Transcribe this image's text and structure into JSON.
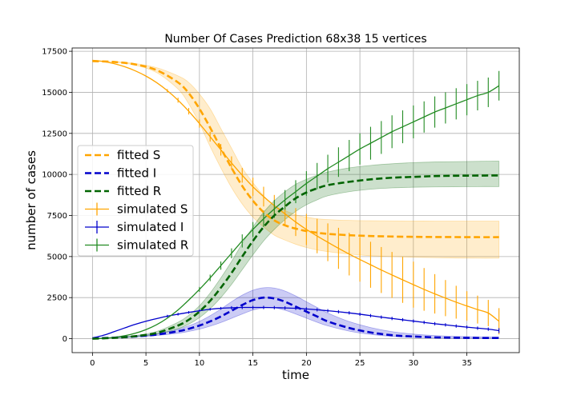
{
  "chart_data": {
    "type": "line",
    "title": "Number Of Cases Prediction 68x38 15 vertices",
    "xlabel": "time",
    "ylabel": "number of cases",
    "xlim": [
      -1.9,
      39.9
    ],
    "ylim": [
      -850,
      17700
    ],
    "xticks": [
      0,
      5,
      10,
      15,
      20,
      25,
      30,
      35
    ],
    "yticks": [
      0,
      2500,
      5000,
      7500,
      10000,
      12500,
      15000,
      17500
    ],
    "grid": true,
    "legend_position": "center-left",
    "fitted": {
      "x": [
        0,
        2,
        4,
        6,
        8,
        9,
        10,
        11,
        12,
        13,
        14,
        15,
        16,
        17,
        18,
        19,
        20,
        21,
        22,
        24,
        26,
        28,
        30,
        32,
        34,
        36,
        38
      ],
      "series": [
        {
          "name": "fitted S",
          "color": "#ffa500",
          "values": [
            16900,
            16850,
            16700,
            16350,
            15600,
            14950,
            14000,
            12850,
            11600,
            10400,
            9300,
            8400,
            7700,
            7200,
            6900,
            6700,
            6550,
            6450,
            6380,
            6300,
            6250,
            6220,
            6200,
            6190,
            6185,
            6180,
            6180
          ],
          "band_lower": [
            16900,
            16850,
            16650,
            16200,
            15200,
            14300,
            13100,
            11700,
            10400,
            9200,
            8200,
            7400,
            6800,
            6300,
            6000,
            5750,
            5550,
            5400,
            5300,
            5150,
            5050,
            5000,
            4960,
            4930,
            4910,
            4900,
            4900
          ],
          "band_upper": [
            16900,
            16870,
            16750,
            16500,
            16000,
            15600,
            14900,
            14000,
            12800,
            11600,
            10400,
            9500,
            8700,
            8100,
            7800,
            7550,
            7400,
            7300,
            7250,
            7200,
            7180,
            7170,
            7165,
            7160,
            7160,
            7160,
            7160
          ]
        },
        {
          "name": "fitted I",
          "color": "#0000cc",
          "values": [
            20,
            60,
            130,
            250,
            450,
            600,
            800,
            1050,
            1350,
            1700,
            2050,
            2350,
            2500,
            2450,
            2250,
            1950,
            1650,
            1350,
            1050,
            650,
            380,
            210,
            130,
            80,
            55,
            45,
            40
          ],
          "band_lower": [
            20,
            50,
            100,
            190,
            330,
            440,
            580,
            760,
            980,
            1240,
            1500,
            1740,
            1870,
            1880,
            1730,
            1500,
            1250,
            1000,
            780,
            460,
            260,
            140,
            80,
            50,
            30,
            25,
            20
          ],
          "band_upper": [
            20,
            70,
            160,
            310,
            580,
            780,
            1050,
            1400,
            1800,
            2250,
            2650,
            2950,
            3100,
            3080,
            2900,
            2600,
            2250,
            1900,
            1560,
            1040,
            680,
            430,
            280,
            190,
            140,
            110,
            100
          ]
        },
        {
          "name": "fitted R",
          "color": "#006400",
          "values": [
            0,
            50,
            150,
            350,
            800,
            1150,
            1650,
            2300,
            3100,
            4000,
            5000,
            5950,
            6800,
            7500,
            8050,
            8550,
            8900,
            9150,
            9350,
            9550,
            9700,
            9800,
            9850,
            9900,
            9920,
            9930,
            9940
          ],
          "band_lower": [
            0,
            40,
            110,
            260,
            600,
            880,
            1280,
            1820,
            2500,
            3300,
            4200,
            5100,
            5950,
            6650,
            7250,
            7750,
            8150,
            8450,
            8700,
            8950,
            9100,
            9180,
            9220,
            9240,
            9250,
            9260,
            9260
          ],
          "band_upper": [
            0,
            60,
            190,
            440,
            1000,
            1420,
            2000,
            2780,
            3700,
            4700,
            5800,
            6800,
            7700,
            8400,
            8950,
            9400,
            9700,
            9950,
            10150,
            10400,
            10550,
            10650,
            10720,
            10760,
            10780,
            10800,
            10810
          ]
        }
      ]
    },
    "simulated": {
      "x": [
        0,
        1,
        2,
        3,
        4,
        5,
        6,
        7,
        8,
        9,
        10,
        11,
        12,
        13,
        14,
        15,
        16,
        17,
        18,
        19,
        20,
        21,
        22,
        23,
        24,
        25,
        26,
        27,
        28,
        29,
        30,
        31,
        32,
        33,
        34,
        35,
        36,
        37,
        38
      ],
      "series": [
        {
          "name": "simulated S",
          "color": "#ffa500",
          "values": [
            16950,
            16880,
            16750,
            16560,
            16310,
            15990,
            15590,
            15100,
            14520,
            13850,
            13100,
            12300,
            11500,
            10700,
            9950,
            9250,
            8650,
            8100,
            7600,
            7100,
            6650,
            6250,
            5870,
            5500,
            5150,
            4820,
            4500,
            4180,
            3880,
            3580,
            3290,
            3000,
            2730,
            2470,
            2220,
            1990,
            1770,
            1560,
            1060
          ],
          "errors": [
            0,
            0,
            0,
            0,
            0,
            0,
            0,
            100,
            150,
            200,
            250,
            300,
            350,
            400,
            450,
            550,
            600,
            650,
            750,
            850,
            950,
            1050,
            1150,
            1250,
            1300,
            1350,
            1400,
            1400,
            1400,
            1400,
            1400,
            1300,
            1200,
            1100,
            1000,
            900,
            850,
            800,
            800
          ]
        },
        {
          "name": "simulated I",
          "color": "#0000cc",
          "values": [
            50,
            200,
            420,
            650,
            870,
            1060,
            1220,
            1370,
            1490,
            1600,
            1700,
            1790,
            1850,
            1880,
            1900,
            1900,
            1900,
            1890,
            1870,
            1850,
            1810,
            1760,
            1700,
            1640,
            1570,
            1490,
            1400,
            1310,
            1230,
            1150,
            1070,
            990,
            910,
            840,
            770,
            700,
            640,
            580,
            490
          ],
          "errors": [
            0,
            0,
            0,
            0,
            0,
            0,
            0,
            80,
            80,
            80,
            80,
            80,
            80,
            100,
            100,
            100,
            100,
            100,
            100,
            100,
            100,
            100,
            100,
            100,
            100,
            100,
            100,
            100,
            100,
            100,
            100,
            100,
            100,
            100,
            100,
            100,
            100,
            100,
            150
          ]
        },
        {
          "name": "simulated R",
          "color": "#228b22",
          "values": [
            0,
            20,
            80,
            180,
            330,
            550,
            850,
            1250,
            1750,
            2350,
            3000,
            3700,
            4450,
            5200,
            5950,
            6650,
            7300,
            7900,
            8450,
            8950,
            9450,
            9900,
            10350,
            10750,
            11150,
            11550,
            11900,
            12250,
            12600,
            12900,
            13200,
            13500,
            13800,
            14050,
            14300,
            14550,
            14800,
            15000,
            15400
          ],
          "errors": [
            0,
            0,
            0,
            0,
            0,
            0,
            0,
            0,
            0,
            0,
            150,
            200,
            250,
            300,
            400,
            450,
            500,
            550,
            600,
            700,
            750,
            800,
            850,
            900,
            950,
            950,
            1000,
            1000,
            1000,
            1000,
            1000,
            950,
            950,
            950,
            950,
            950,
            900,
            900,
            900
          ]
        }
      ]
    },
    "legend": [
      {
        "label": "fitted S",
        "style": "dashed",
        "color": "#ffa500"
      },
      {
        "label": "fitted I",
        "style": "dashed",
        "color": "#0000cc"
      },
      {
        "label": "fitted R",
        "style": "dashed",
        "color": "#006400"
      },
      {
        "label": "simulated S",
        "style": "errorbar",
        "color": "#ffa500"
      },
      {
        "label": "simulated I",
        "style": "errorbar",
        "color": "#0000cc"
      },
      {
        "label": "simulated R",
        "style": "errorbar",
        "color": "#228b22"
      }
    ]
  }
}
